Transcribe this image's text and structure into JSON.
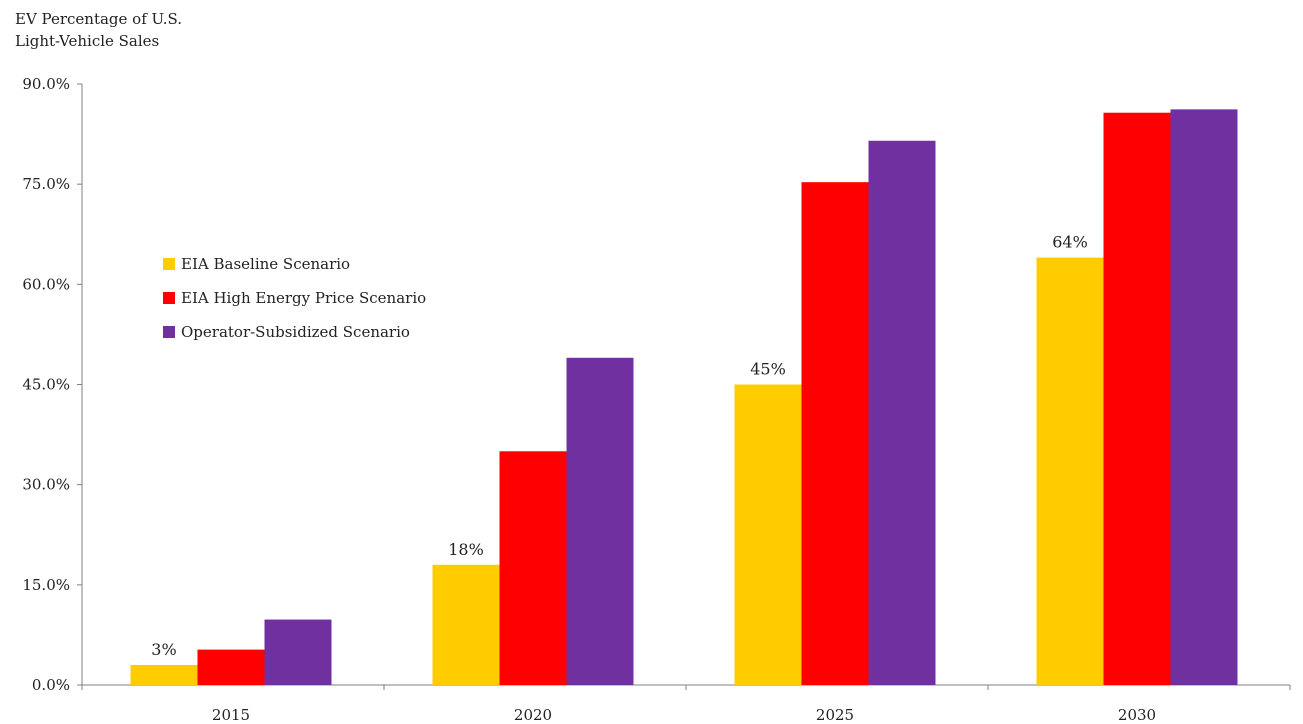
{
  "chart_data": {
    "type": "bar",
    "ylabel": "EV Percentage of U.S.\nLight-Vehicle Sales",
    "categories": [
      "2015",
      "2020",
      "2025",
      "2030"
    ],
    "series": [
      {
        "name": "EIA Baseline Scenario",
        "color": "#ffcc00",
        "values": [
          3,
          18,
          45,
          64
        ]
      },
      {
        "name": "EIA High Energy Price Scenario",
        "color": "#ff0000",
        "values": [
          5.3,
          35,
          75.3,
          85.7
        ]
      },
      {
        "name": "Operator-Subsidized Scenario",
        "color": "#7030a0",
        "values": [
          9.8,
          49,
          81.5,
          86.2
        ]
      }
    ],
    "data_labels": [
      {
        "series": 0,
        "category": 0,
        "text": "3%"
      },
      {
        "series": 0,
        "category": 1,
        "text": "18%"
      },
      {
        "series": 0,
        "category": 2,
        "text": "45%"
      },
      {
        "series": 0,
        "category": 3,
        "text": "64%"
      }
    ],
    "yticks": [
      "0.0%",
      "15.0%",
      "30.0%",
      "45.0%",
      "60.0%",
      "75.0%",
      "90.0%"
    ],
    "ytick_values": [
      0,
      15,
      30,
      45,
      60,
      75,
      90
    ],
    "ylim": [
      0,
      90
    ],
    "grid": false,
    "legend_position": "left-middle"
  }
}
